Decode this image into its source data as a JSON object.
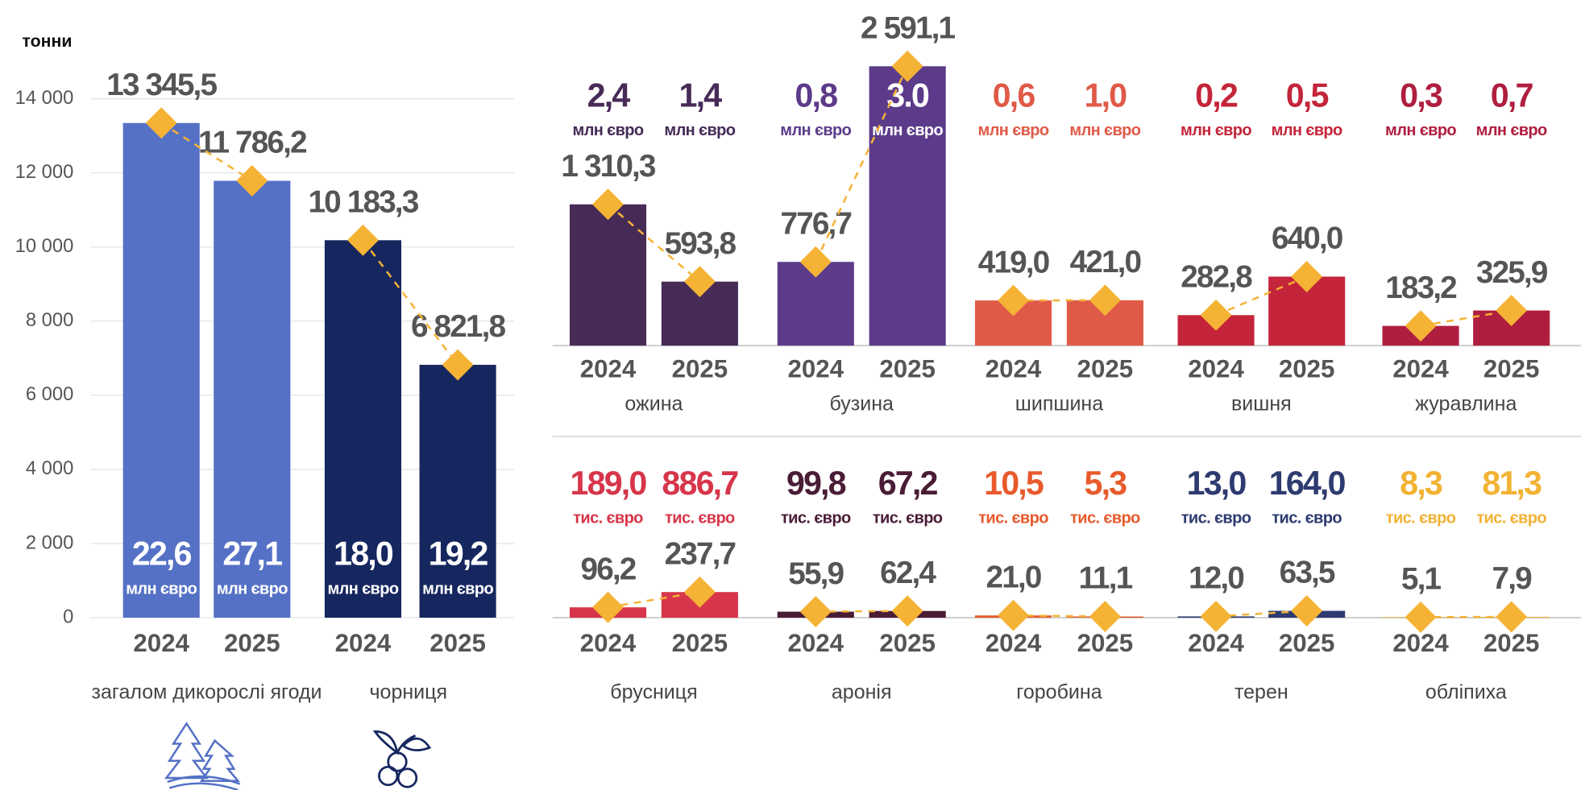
{
  "chart_data": [
    {
      "type": "bar",
      "y_label": "тонни",
      "ylim": [
        0,
        14000
      ],
      "yticks": [
        0,
        {
          "value": 2000,
          "label": "2 000"
        },
        {
          "value": 4000,
          "label": "4 000"
        },
        {
          "value": 6000,
          "label": "6 000"
        },
        {
          "value": 8000,
          "label": "8 000"
        },
        {
          "value": 10000,
          "label": "10 000"
        },
        {
          "value": 12000,
          "label": "12 000"
        },
        {
          "value": 14000,
          "label": "14 000"
        }
      ],
      "grid": true,
      "line_color": "#f5b335",
      "groups": [
        {
          "name": "загалом дикорослі ягоди",
          "color": "#5571c6",
          "categories": [
            "2024",
            "2025"
          ],
          "values": [
            13345.5,
            11786.2
          ],
          "value_labels": [
            "13 345,5",
            "11 786,2"
          ],
          "euro": {
            "values": [
              22.6,
              27.1
            ],
            "value_labels": [
              "22,6",
              "27,1"
            ],
            "unit": "млн євро",
            "color": "#ffffff"
          }
        },
        {
          "name": "чорниця",
          "color": "#16275f",
          "categories": [
            "2024",
            "2025"
          ],
          "values": [
            10183.3,
            6821.8
          ],
          "value_labels": [
            "10 183,3",
            "6 821,8"
          ],
          "euro": {
            "values": [
              18.0,
              19.2
            ],
            "value_labels": [
              "18,0",
              "19,2"
            ],
            "unit": "млн євро",
            "color": "#ffffff"
          }
        }
      ]
    },
    {
      "type": "bar",
      "line_color": "#f5b335",
      "groups": [
        {
          "name": "ожина",
          "color": "#472b57",
          "categories": [
            "2024",
            "2025"
          ],
          "values": [
            1310.3,
            593.8
          ],
          "value_labels": [
            "1 310,3",
            "593,8"
          ],
          "euro": {
            "values": [
              2.4,
              1.4
            ],
            "value_labels": [
              "2,4",
              "1,4"
            ],
            "unit": "млн євро",
            "color": "#472b57"
          }
        },
        {
          "name": "бузина",
          "color": "#5c3b8a",
          "categories": [
            "2024",
            "2025"
          ],
          "values": [
            776.7,
            2591.1
          ],
          "value_labels": [
            "776,7",
            "2 591,1"
          ],
          "euro": {
            "values": [
              0.8,
              3.0
            ],
            "value_labels": [
              "0,8",
              "3.0"
            ],
            "unit": "млн євро",
            "color": "#5c3b8a"
          }
        },
        {
          "name": "шипшина",
          "color": "#e05a48",
          "categories": [
            "2024",
            "2025"
          ],
          "values": [
            419.0,
            421.0
          ],
          "value_labels": [
            "419,0",
            "421,0"
          ],
          "euro": {
            "values": [
              0.6,
              1.0
            ],
            "value_labels": [
              "0,6",
              "1,0"
            ],
            "unit": "млн євро",
            "color": "#e05a48"
          }
        },
        {
          "name": "вишня",
          "color": "#c4253a",
          "categories": [
            "2024",
            "2025"
          ],
          "values": [
            282.8,
            640.0
          ],
          "value_labels": [
            "282,8",
            "640,0"
          ],
          "euro": {
            "values": [
              0.2,
              0.5
            ],
            "value_labels": [
              "0,2",
              "0,5"
            ],
            "unit": "млн євро",
            "color": "#c4253a"
          }
        },
        {
          "name": "журавлина",
          "color": "#b01e3f",
          "categories": [
            "2024",
            "2025"
          ],
          "values": [
            183.2,
            325.9
          ],
          "value_labels": [
            "183,2",
            "325,9"
          ],
          "euro": {
            "values": [
              0.3,
              0.7
            ],
            "value_labels": [
              "0,3",
              "0,7"
            ],
            "unit": "млн євро",
            "color": "#b01e3f"
          }
        }
      ]
    },
    {
      "type": "bar",
      "line_color": "#f5b335",
      "groups": [
        {
          "name": "брусниця",
          "color": "#d7354a",
          "categories": [
            "2024",
            "2025"
          ],
          "values": [
            96.2,
            237.7
          ],
          "value_labels": [
            "96,2",
            "237,7"
          ],
          "euro": {
            "values": [
              189.0,
              886.7
            ],
            "value_labels": [
              "189,0",
              "886,7"
            ],
            "unit": "тис. євро",
            "color": "#d7354a"
          }
        },
        {
          "name": "аронія",
          "color": "#4a1c36",
          "categories": [
            "2024",
            "2025"
          ],
          "values": [
            55.9,
            62.4
          ],
          "value_labels": [
            "55,9",
            "62,4"
          ],
          "euro": {
            "values": [
              99.8,
              67.2
            ],
            "value_labels": [
              "99,8",
              "67,2"
            ],
            "unit": "тис. євро",
            "color": "#4a1c36"
          }
        },
        {
          "name": "горобина",
          "color": "#e85a2c",
          "categories": [
            "2024",
            "2025"
          ],
          "values": [
            21.0,
            11.1
          ],
          "value_labels": [
            "21,0",
            "11,1"
          ],
          "euro": {
            "values": [
              10.5,
              5.3
            ],
            "value_labels": [
              "10,5",
              "5,3"
            ],
            "unit": "тис. євро",
            "color": "#e85a2c"
          }
        },
        {
          "name": "терен",
          "color": "#2e3b70",
          "categories": [
            "2024",
            "2025"
          ],
          "values": [
            12.0,
            63.5
          ],
          "value_labels": [
            "12,0",
            "63,5"
          ],
          "euro": {
            "values": [
              13.0,
              164.0
            ],
            "value_labels": [
              "13,0",
              "164,0"
            ],
            "unit": "тис. євро",
            "color": "#2e3b70"
          }
        },
        {
          "name": "обліпиха",
          "color": "#f2b233",
          "categories": [
            "2024",
            "2025"
          ],
          "values": [
            5.1,
            7.9
          ],
          "value_labels": [
            "5,1",
            "7,9"
          ],
          "euro": {
            "values": [
              8.3,
              81.3
            ],
            "value_labels": [
              "8,3",
              "81,3"
            ],
            "unit": "тис. євро",
            "color": "#f2b233"
          }
        }
      ]
    }
  ]
}
